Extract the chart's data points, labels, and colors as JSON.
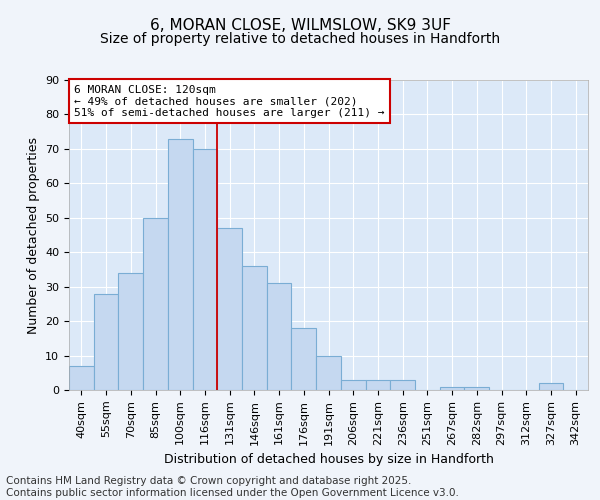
{
  "title1": "6, MORAN CLOSE, WILMSLOW, SK9 3UF",
  "title2": "Size of property relative to detached houses in Handforth",
  "xlabel": "Distribution of detached houses by size in Handforth",
  "ylabel": "Number of detached properties",
  "categories": [
    "40sqm",
    "55sqm",
    "70sqm",
    "85sqm",
    "100sqm",
    "116sqm",
    "131sqm",
    "146sqm",
    "161sqm",
    "176sqm",
    "191sqm",
    "206sqm",
    "221sqm",
    "236sqm",
    "251sqm",
    "267sqm",
    "282sqm",
    "297sqm",
    "312sqm",
    "327sqm",
    "342sqm"
  ],
  "values": [
    7,
    28,
    34,
    50,
    73,
    70,
    47,
    36,
    31,
    18,
    10,
    3,
    3,
    3,
    0,
    1,
    1,
    0,
    0,
    2,
    0
  ],
  "bar_color": "#c5d8f0",
  "bar_edge_color": "#7aadd4",
  "vline_x": 5.5,
  "vline_color": "#cc0000",
  "annotation_text": "6 MORAN CLOSE: 120sqm\n← 49% of detached houses are smaller (202)\n51% of semi-detached houses are larger (211) →",
  "annotation_box_color": "#ffffff",
  "annotation_box_edge": "#cc0000",
  "ylim": [
    0,
    90
  ],
  "yticks": [
    0,
    10,
    20,
    30,
    40,
    50,
    60,
    70,
    80,
    90
  ],
  "background_color": "#dce9f8",
  "grid_color": "#ffffff",
  "fig_bg_color": "#f0f4fa",
  "footer_text": "Contains HM Land Registry data © Crown copyright and database right 2025.\nContains public sector information licensed under the Open Government Licence v3.0.",
  "title_fontsize": 11,
  "subtitle_fontsize": 10,
  "axis_label_fontsize": 9,
  "tick_fontsize": 8,
  "footer_fontsize": 7.5
}
